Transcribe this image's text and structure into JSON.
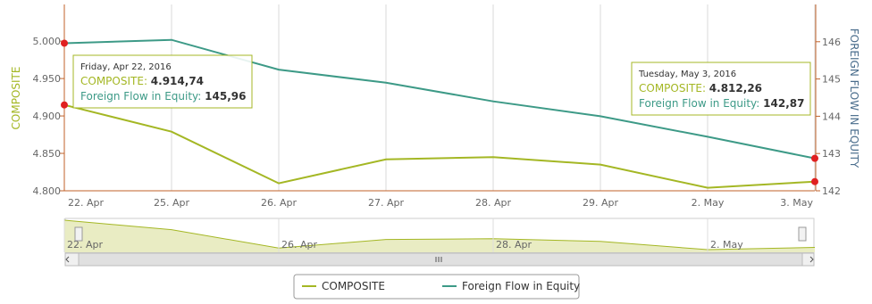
{
  "chart_data": {
    "type": "line",
    "categories": [
      "22. Apr",
      "25. Apr",
      "26. Apr",
      "27. Apr",
      "28. Apr",
      "29. Apr",
      "2. May",
      "3. May"
    ],
    "series": [
      {
        "name": "COMPOSITE",
        "color": "#a4b724",
        "axis": "y",
        "values": [
          4914.74,
          4879,
          4810,
          4842,
          4845,
          4835,
          4804,
          4812.26
        ]
      },
      {
        "name": "Foreign Flow in Equity",
        "color": "#3d9a87",
        "axis": "y2",
        "values": [
          145.96,
          146.05,
          145.25,
          144.9,
          144.4,
          144.0,
          143.45,
          142.87
        ]
      }
    ],
    "ylabel": "COMPOSITE",
    "y2label": "FOREIGN FLOW IN EQUITY",
    "ylim": [
      4800,
      5049
    ],
    "yticks": [
      {
        "value": 4800,
        "label": "4.800"
      },
      {
        "value": 4850,
        "label": "4.850"
      },
      {
        "value": 4900,
        "label": "4.900"
      },
      {
        "value": 4950,
        "label": "4.950"
      },
      {
        "value": 5000,
        "label": "5.000"
      }
    ],
    "y2lim": [
      142,
      147
    ],
    "y2ticks": [
      142,
      143,
      144,
      145,
      146
    ],
    "tooltips": [
      {
        "title": "Friday, Apr 22, 2016",
        "values": [
          4914.74,
          145.96
        ],
        "value_labels": [
          "4.914,74",
          "145,96"
        ]
      },
      {
        "title": "Tuesday, May 3, 2016",
        "values": [
          4812.26,
          142.87
        ],
        "value_labels": [
          "4.812,26",
          "142,87"
        ]
      }
    ],
    "grid": true,
    "legend": "bottom"
  }
}
